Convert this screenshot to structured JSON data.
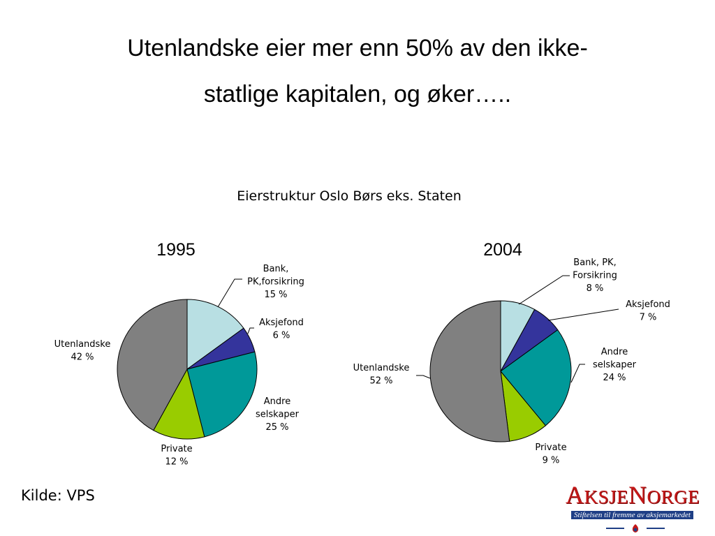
{
  "slide": {
    "title_line1": "Utenlandske eier mer enn 50% av den ikke-",
    "title_line2": "statlige kapitalen, og øker…..",
    "source": "Kilde: VPS"
  },
  "logo": {
    "word": "AksjeNorge",
    "tagline": "Stiftelsen til fremme av aksjemarkedet",
    "colors": {
      "red": "#c41818",
      "blue": "#1f3f86"
    }
  },
  "chart_data": [
    {
      "type": "pie",
      "title": "Eierstruktur Oslo Børs eks. Staten",
      "subtitle": "1995",
      "slices": [
        {
          "label": [
            "Bank,",
            "PK,forsikring"
          ],
          "value": 15,
          "value_label": "15 %",
          "color": "#b8dfe3"
        },
        {
          "label": [
            "Aksjefond"
          ],
          "value": 6,
          "value_label": "6 %",
          "color": "#34349c"
        },
        {
          "label": [
            "Andre",
            "selskaper"
          ],
          "value": 25,
          "value_label": "25 %",
          "color": "#009999"
        },
        {
          "label": [
            "Private"
          ],
          "value": 12,
          "value_label": "12 %",
          "color": "#99cc00"
        },
        {
          "label": [
            "Utenlandske"
          ],
          "value": 42,
          "value_label": "42 %",
          "color": "#808080"
        }
      ]
    },
    {
      "type": "pie",
      "title": "Eierstruktur Oslo Børs eks. Staten",
      "subtitle": "2004",
      "slices": [
        {
          "label": [
            "Bank, PK,",
            "Forsikring"
          ],
          "value": 8,
          "value_label": "8 %",
          "color": "#b8dfe3"
        },
        {
          "label": [
            "Aksjefond"
          ],
          "value": 7,
          "value_label": "7 %",
          "color": "#34349c"
        },
        {
          "label": [
            "Andre",
            "selskaper"
          ],
          "value": 24,
          "value_label": "24 %",
          "color": "#009999"
        },
        {
          "label": [
            "Private"
          ],
          "value": 9,
          "value_label": "9 %",
          "color": "#99cc00"
        },
        {
          "label": [
            "Utenlandske"
          ],
          "value": 52,
          "value_label": "52 %",
          "color": "#808080"
        }
      ]
    }
  ]
}
